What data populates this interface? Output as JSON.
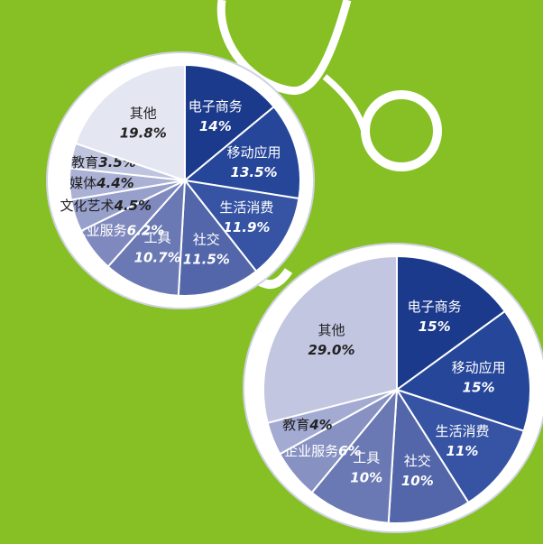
{
  "chart_data": [
    {
      "type": "pie",
      "categories": [
        "电子商务",
        "移动应用",
        "生活消费",
        "社交",
        "工具",
        "企业服务",
        "文化艺术",
        "媒体",
        "教育",
        "其他"
      ],
      "values": [
        14,
        13.5,
        11.9,
        11.5,
        10.7,
        6.2,
        4.5,
        4.4,
        3.5,
        19.8
      ],
      "value_labels": [
        "14%",
        "13.5%",
        "11.9%",
        "11.5%",
        "10.7%",
        "6.2%",
        "4.5%",
        "4.4%",
        "3.5%",
        "19.8%"
      ],
      "colors": [
        "#1c3a8c",
        "#26469a",
        "#3654a3",
        "#5366aa",
        "#6a79b3",
        "#8089bd",
        "#97a0cb",
        "#aab1d5",
        "#bfc4df",
        "#e4e6f1"
      ]
    },
    {
      "type": "pie",
      "categories": [
        "电子商务",
        "移动应用",
        "生活消费",
        "社交",
        "工具",
        "企业服务",
        "教育",
        "其他"
      ],
      "values": [
        15,
        15,
        11,
        10,
        10,
        6,
        4,
        29
      ],
      "value_labels": [
        "15%",
        "15%",
        "11%",
        "10%",
        "10%",
        "6%",
        "4%",
        "29.0%"
      ],
      "colors": [
        "#1c3a8c",
        "#26469a",
        "#3654a3",
        "#5366aa",
        "#6a79b3",
        "#8791c2",
        "#a4abd2",
        "#c2c6e0"
      ]
    }
  ]
}
